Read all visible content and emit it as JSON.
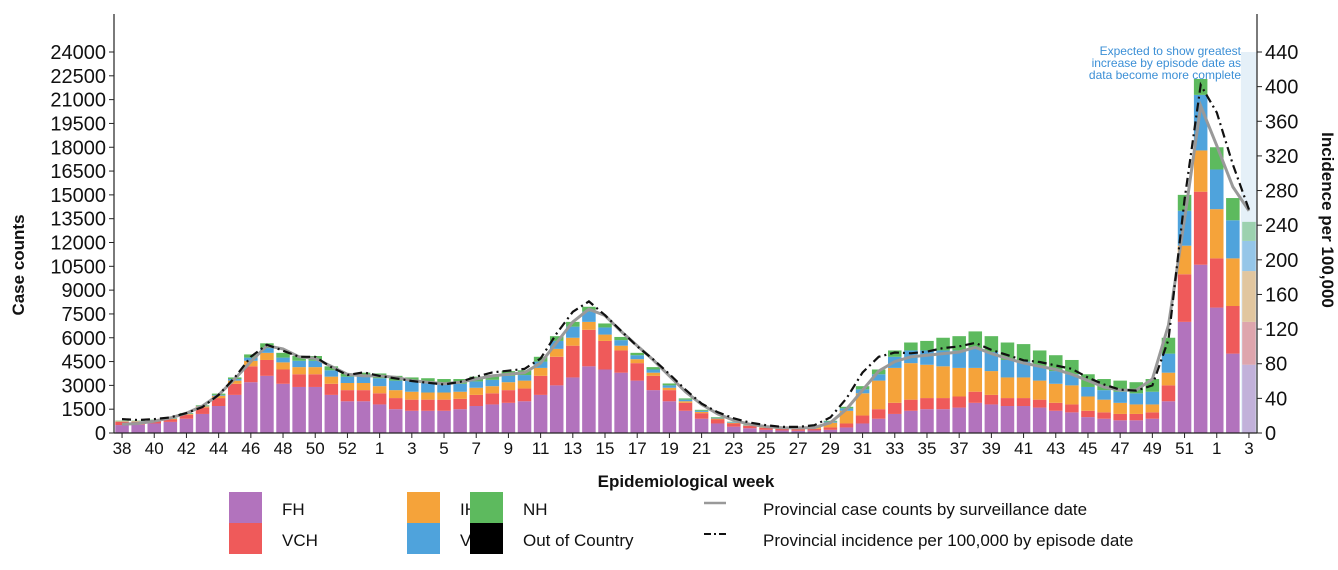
{
  "chart_data": {
    "type": "bar",
    "stacked": true,
    "xlabel": "Epidemiological week",
    "ylabel": "Case counts",
    "y2label": "Incidence per 100,000",
    "ylim": [
      0,
      24000
    ],
    "y2lim": [
      0,
      440
    ],
    "yticks": [
      0,
      1500,
      3000,
      4500,
      6000,
      7500,
      9000,
      10500,
      12000,
      13500,
      15000,
      16500,
      18000,
      19500,
      21000,
      22500,
      24000
    ],
    "y2ticks": [
      0,
      40,
      80,
      120,
      160,
      200,
      240,
      280,
      320,
      360,
      400,
      440
    ],
    "grid": false,
    "categories": [
      "38",
      "39",
      "40",
      "41",
      "42",
      "43",
      "44",
      "45",
      "46",
      "47",
      "48",
      "49",
      "50",
      "51",
      "52",
      "53",
      "1",
      "2",
      "3",
      "4",
      "5",
      "6",
      "7",
      "8",
      "9",
      "10",
      "11",
      "12",
      "13",
      "14",
      "15",
      "16",
      "17",
      "18",
      "19",
      "20",
      "21",
      "22",
      "23",
      "24",
      "25",
      "26",
      "27",
      "28",
      "29",
      "30",
      "31",
      "32",
      "33",
      "34",
      "35",
      "36",
      "37",
      "38",
      "39",
      "40",
      "41",
      "42",
      "43",
      "44",
      "45",
      "46",
      "47",
      "48",
      "49",
      "50",
      "51",
      "52",
      "1",
      "2",
      "3"
    ],
    "tick_labels": [
      "38",
      "40",
      "42",
      "44",
      "46",
      "48",
      "50",
      "52",
      "1",
      "3",
      "5",
      "7",
      "9",
      "11",
      "13",
      "15",
      "17",
      "19",
      "21",
      "23",
      "25",
      "27",
      "29",
      "31",
      "33",
      "35",
      "37",
      "39",
      "41",
      "43",
      "45",
      "47",
      "49",
      "51",
      "1",
      "3"
    ],
    "series": [
      {
        "name": "FH",
        "color": "#b273bd",
        "values": [
          500,
          520,
          600,
          700,
          900,
          1200,
          1700,
          2400,
          3200,
          3600,
          3100,
          2900,
          2900,
          2400,
          2000,
          2000,
          1800,
          1500,
          1400,
          1400,
          1400,
          1500,
          1700,
          1800,
          1900,
          2000,
          2400,
          3000,
          3500,
          4200,
          4000,
          3800,
          3300,
          2700,
          2000,
          1400,
          900,
          600,
          400,
          300,
          200,
          160,
          140,
          160,
          200,
          350,
          600,
          900,
          1200,
          1400,
          1500,
          1500,
          1600,
          1900,
          1800,
          1700,
          1700,
          1600,
          1400,
          1300,
          1000,
          900,
          800,
          800,
          900,
          2000,
          7000,
          10600,
          7900,
          5000,
          4300
        ]
      },
      {
        "name": "VCH",
        "color": "#ef5a5a",
        "values": [
          200,
          180,
          150,
          150,
          250,
          400,
          500,
          700,
          1000,
          1000,
          900,
          800,
          800,
          700,
          700,
          700,
          700,
          700,
          700,
          700,
          700,
          650,
          700,
          700,
          800,
          800,
          1200,
          1800,
          2000,
          2300,
          1800,
          1400,
          1100,
          900,
          700,
          500,
          350,
          250,
          200,
          150,
          120,
          100,
          100,
          100,
          150,
          250,
          500,
          600,
          700,
          700,
          700,
          700,
          700,
          700,
          600,
          500,
          500,
          500,
          500,
          500,
          400,
          400,
          400,
          400,
          400,
          1000,
          3000,
          4600,
          3100,
          3000,
          2700
        ]
      },
      {
        "name": "IH",
        "color": "#f5a33a",
        "values": [
          40,
          40,
          50,
          50,
          60,
          80,
          150,
          200,
          350,
          450,
          450,
          450,
          450,
          450,
          450,
          450,
          450,
          500,
          500,
          450,
          450,
          450,
          450,
          450,
          500,
          500,
          500,
          500,
          500,
          500,
          400,
          300,
          250,
          200,
          150,
          100,
          80,
          60,
          40,
          30,
          30,
          30,
          40,
          100,
          300,
          800,
          1400,
          1800,
          2200,
          2300,
          2100,
          2000,
          1800,
          1500,
          1500,
          1300,
          1300,
          1200,
          1200,
          1200,
          900,
          800,
          700,
          600,
          500,
          800,
          1800,
          2600,
          3100,
          3000,
          3200
        ]
      },
      {
        "name": "VIHA",
        "color": "#4fa3dc",
        "values": [
          20,
          20,
          20,
          20,
          20,
          30,
          50,
          100,
          200,
          300,
          300,
          400,
          400,
          400,
          400,
          400,
          500,
          600,
          700,
          700,
          600,
          500,
          400,
          400,
          400,
          350,
          400,
          500,
          700,
          650,
          450,
          350,
          250,
          200,
          150,
          100,
          70,
          50,
          40,
          30,
          30,
          20,
          20,
          40,
          70,
          150,
          250,
          400,
          700,
          800,
          900,
          1000,
          1100,
          1200,
          1200,
          1100,
          1000,
          900,
          800,
          700,
          600,
          600,
          700,
          700,
          800,
          1200,
          2200,
          3500,
          2500,
          2400,
          1900
        ]
      },
      {
        "name": "NH",
        "color": "#5dba5e",
        "values": [
          20,
          20,
          20,
          30,
          30,
          40,
          80,
          100,
          200,
          300,
          300,
          300,
          300,
          250,
          200,
          250,
          300,
          300,
          200,
          200,
          250,
          300,
          300,
          300,
          300,
          300,
          300,
          300,
          300,
          300,
          250,
          200,
          150,
          150,
          120,
          80,
          60,
          40,
          30,
          20,
          20,
          20,
          20,
          30,
          50,
          100,
          200,
          300,
          400,
          500,
          600,
          800,
          900,
          1100,
          1000,
          1100,
          1100,
          1000,
          1000,
          900,
          800,
          700,
          700,
          700,
          800,
          1000,
          1000,
          1000,
          1400,
          1400,
          1200
        ]
      },
      {
        "name": "Out of Country",
        "color": "#000000",
        "values": [
          0,
          0,
          0,
          0,
          0,
          0,
          0,
          0,
          0,
          0,
          0,
          0,
          0,
          0,
          0,
          0,
          0,
          0,
          0,
          0,
          0,
          0,
          0,
          0,
          0,
          0,
          0,
          0,
          0,
          0,
          0,
          0,
          0,
          0,
          0,
          0,
          0,
          0,
          0,
          0,
          0,
          0,
          0,
          0,
          0,
          0,
          0,
          0,
          0,
          0,
          0,
          0,
          0,
          0,
          0,
          0,
          0,
          0,
          0,
          0,
          0,
          0,
          0,
          0,
          0,
          0,
          0,
          0,
          0,
          0,
          0
        ]
      }
    ],
    "lines": [
      {
        "name": "Provincial case counts by surveillance date",
        "color": "#999999",
        "style": "solid",
        "values": [
          550,
          600,
          750,
          950,
          1250,
          1700,
          2400,
          3400,
          4500,
          5500,
          5300,
          4800,
          4700,
          4200,
          3700,
          3600,
          3600,
          3500,
          3300,
          3200,
          3100,
          3200,
          3400,
          3600,
          3700,
          3800,
          4400,
          5700,
          7000,
          7800,
          7400,
          6400,
          5500,
          4600,
          3600,
          2600,
          1800,
          1200,
          800,
          550,
          400,
          330,
          320,
          340,
          650,
          1500,
          2700,
          3900,
          4500,
          4800,
          4900,
          5000,
          5100,
          5400,
          5000,
          4700,
          4400,
          4200,
          4000,
          3700,
          3300,
          2900,
          2700,
          2700,
          3400,
          6800,
          13500,
          20600,
          18100,
          15500,
          14000
        ]
      },
      {
        "name": "Provincial incidence per 100,000 by episode date",
        "color": "#111111",
        "style": "dashdot",
        "values": [
          16,
          15,
          16,
          18,
          23,
          30,
          44,
          64,
          88,
          102,
          95,
          88,
          88,
          76,
          67,
          70,
          66,
          63,
          60,
          58,
          56,
          59,
          65,
          70,
          72,
          74,
          86,
          115,
          140,
          152,
          136,
          118,
          100,
          85,
          68,
          50,
          34,
          24,
          17,
          12,
          9,
          7,
          7,
          9,
          18,
          40,
          70,
          88,
          93,
          92,
          94,
          98,
          100,
          104,
          96,
          90,
          84,
          82,
          78,
          74,
          64,
          56,
          50,
          49,
          55,
          108,
          270,
          402,
          370,
          310,
          258
        ]
      }
    ],
    "annotations": [
      "Expected to show greatest",
      "increase by episode date as",
      "data become more complete"
    ],
    "legend": {
      "placement": "bottom",
      "items": [
        {
          "label": "FH",
          "color": "#b273bd",
          "kind": "box"
        },
        {
          "label": "VCH",
          "color": "#ef5a5a",
          "kind": "box"
        },
        {
          "label": "IH",
          "color": "#f5a33a",
          "kind": "box"
        },
        {
          "label": "VIHA",
          "color": "#4fa3dc",
          "kind": "box"
        },
        {
          "label": "NH",
          "color": "#5dba5e",
          "kind": "box"
        },
        {
          "label": "Out of Country",
          "color": "#000000",
          "kind": "box"
        },
        {
          "label": "Provincial case counts by surveillance date",
          "color": "#999999",
          "kind": "solid"
        },
        {
          "label": "Provincial incidence per 100,000 by episode date",
          "color": "#111111",
          "kind": "dashdot"
        }
      ]
    }
  }
}
